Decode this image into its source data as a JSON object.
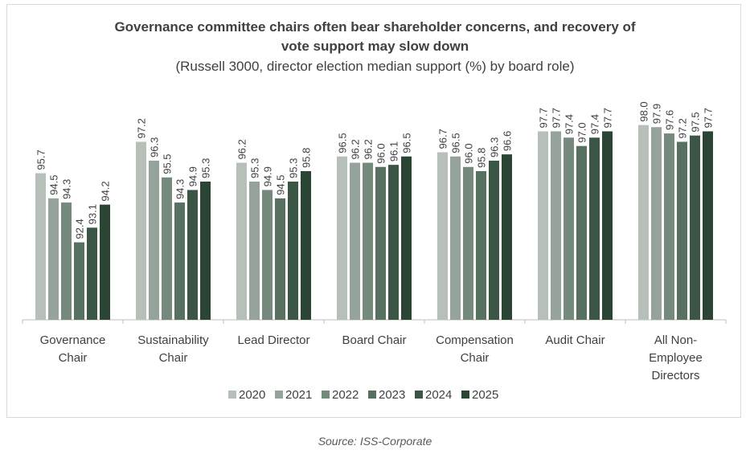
{
  "chart_data": {
    "type": "bar",
    "title_line1": "Governance committee chairs often bear shareholder concerns, and recovery of",
    "title_line2": "vote support may slow down",
    "subtitle": "(Russell 3000, director election median support (%) by board role)",
    "categories": [
      [
        "Governance",
        "Chair"
      ],
      [
        "Sustainability",
        "Chair"
      ],
      [
        "Lead Director"
      ],
      [
        "Board Chair"
      ],
      [
        "Compensation",
        "Chair"
      ],
      [
        "Audit Chair"
      ],
      [
        "All Non-",
        "Employee",
        "Directors"
      ]
    ],
    "series": [
      {
        "name": "2020",
        "color": "#b7bfb9",
        "values": [
          95.7,
          97.2,
          96.2,
          96.5,
          96.7,
          97.7,
          98.0
        ]
      },
      {
        "name": "2021",
        "color": "#95a39a",
        "values": [
          94.5,
          96.3,
          95.3,
          96.2,
          96.5,
          97.7,
          97.9
        ]
      },
      {
        "name": "2022",
        "color": "#76897d",
        "values": [
          94.3,
          95.5,
          94.9,
          96.2,
          96.0,
          97.4,
          97.6
        ]
      },
      {
        "name": "2023",
        "color": "#58705f",
        "values": [
          92.4,
          94.3,
          94.5,
          96.0,
          95.8,
          97.0,
          97.2
        ]
      },
      {
        "name": "2024",
        "color": "#3b5644",
        "values": [
          93.1,
          94.9,
          95.3,
          96.1,
          96.3,
          97.4,
          97.5
        ]
      },
      {
        "name": "2025",
        "color": "#2a4533",
        "values": [
          94.2,
          95.3,
          95.8,
          96.5,
          96.6,
          97.7,
          97.7
        ]
      }
    ],
    "ylim": [
      88.7,
      98.6
    ],
    "xlabel": "",
    "ylabel": "",
    "grid": false,
    "legend_position": "bottom"
  },
  "source": "Source: ISS-Corporate"
}
